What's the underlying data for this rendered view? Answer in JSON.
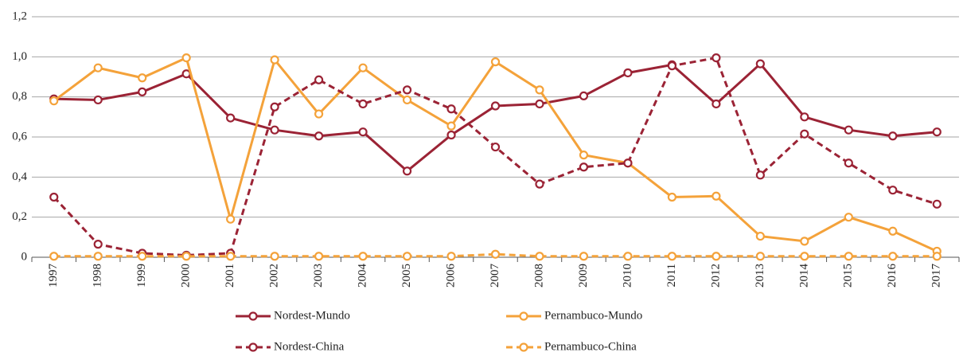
{
  "chart_data": {
    "type": "line",
    "categories": [
      "1997",
      "1998",
      "1999",
      "2000",
      "2001",
      "2002",
      "2003",
      "2004",
      "2005",
      "2006",
      "2007",
      "2008",
      "2009",
      "2010",
      "2011",
      "2012",
      "2013",
      "2014",
      "2015",
      "2016",
      "2017"
    ],
    "series": [
      {
        "name": "Nordest-Mundo",
        "color": "#9b2335",
        "dash": false,
        "values": [
          0.79,
          0.785,
          0.825,
          0.915,
          0.695,
          0.635,
          0.605,
          0.625,
          0.43,
          0.61,
          0.755,
          0.765,
          0.805,
          0.92,
          0.96,
          0.765,
          0.965,
          0.7,
          0.635,
          0.605,
          0.625
        ]
      },
      {
        "name": "Pernambuco-Mundo",
        "color": "#f4a23a",
        "dash": false,
        "values": [
          0.78,
          0.945,
          0.895,
          0.995,
          0.19,
          0.985,
          0.715,
          0.945,
          0.785,
          0.655,
          0.975,
          0.835,
          0.51,
          0.47,
          0.3,
          0.305,
          0.105,
          0.08,
          0.2,
          0.13,
          0.03
        ]
      },
      {
        "name": "Nordest-China",
        "color": "#9b2335",
        "dash": true,
        "values": [
          0.3,
          0.065,
          0.02,
          0.01,
          0.02,
          0.75,
          0.885,
          0.765,
          0.835,
          0.74,
          0.55,
          0.365,
          0.45,
          0.47,
          0.955,
          0.995,
          0.41,
          0.615,
          0.47,
          0.335,
          0.265
        ]
      },
      {
        "name": "Pernambuco-China",
        "color": "#f4a23a",
        "dash": true,
        "values": [
          0.005,
          0.005,
          0.005,
          0.005,
          0.005,
          0.005,
          0.005,
          0.005,
          0.005,
          0.005,
          0.015,
          0.005,
          0.005,
          0.005,
          0.005,
          0.005,
          0.005,
          0.005,
          0.005,
          0.005,
          0.005
        ]
      }
    ],
    "ylim": [
      0,
      1.2
    ],
    "yticks": [
      0,
      {
        "value": 0.2,
        "label": "0,2"
      },
      {
        "value": 0.4,
        "label": "0,4"
      },
      {
        "value": 0.6,
        "label": "0,6"
      },
      {
        "value": 0.8,
        "label": "0,8"
      },
      {
        "value": 1.0,
        "label": "1,0"
      },
      {
        "value": 1.2,
        "label": "1,2"
      }
    ],
    "grid": true
  }
}
